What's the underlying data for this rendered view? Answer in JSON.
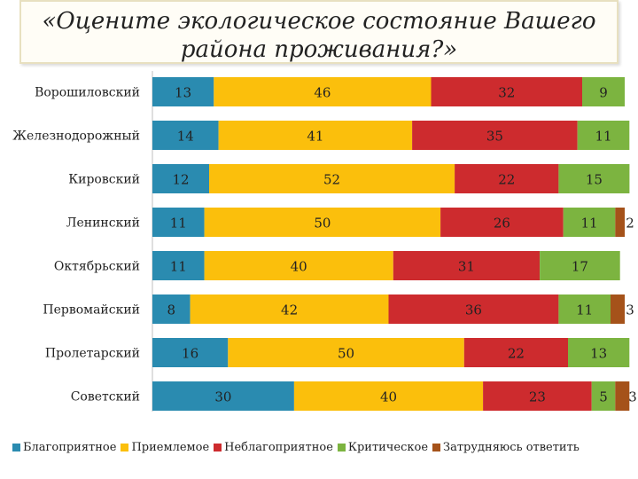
{
  "title_line1": "«Оцените экологическое состояние Вашего",
  "title_line2": "района проживания?»",
  "chart_data": {
    "type": "bar",
    "orientation": "horizontal",
    "stacked": true,
    "title": "«Оцените экологическое состояние Вашего района проживания?»",
    "categories": [
      "Ворошиловский",
      "Железнодорожный",
      "Кировский",
      "Ленинский",
      "Октябрьский",
      "Первомайский",
      "Пролетарский",
      "Советский"
    ],
    "series": [
      {
        "name": "Благоприятное",
        "color": "#2a8bb0",
        "values": [
          13,
          14,
          12,
          11,
          11,
          8,
          16,
          30
        ]
      },
      {
        "name": "Приемлемое",
        "color": "#fbbf0c",
        "values": [
          46,
          41,
          52,
          50,
          40,
          42,
          50,
          40
        ]
      },
      {
        "name": "Неблагоприятное",
        "color": "#cd2b2e",
        "values": [
          32,
          35,
          22,
          26,
          31,
          36,
          22,
          23
        ]
      },
      {
        "name": "Критическое",
        "color": "#7cb440",
        "values": [
          9,
          11,
          15,
          11,
          17,
          11,
          13,
          5
        ]
      },
      {
        "name": "Затрудняюсь ответить",
        "color": "#a5521a",
        "values": [
          0,
          0,
          0,
          2,
          0,
          3,
          0,
          3
        ]
      }
    ],
    "xlim": [
      0,
      100
    ],
    "legend_position": "bottom"
  }
}
